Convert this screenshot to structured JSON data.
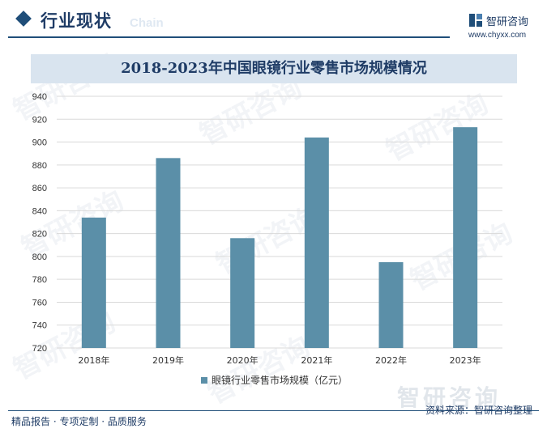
{
  "header": {
    "title": "行业现状",
    "subtitle_en": "Chain"
  },
  "brand": {
    "name": "智研咨询",
    "url": "www.chyxx.com"
  },
  "watermark_text": "智研咨询",
  "chart_data": {
    "type": "bar",
    "title": "2018-2023年中国眼镜行业零售市场规模情况",
    "categories": [
      "2018年",
      "2019年",
      "2020年",
      "2021年",
      "2022年",
      "2023年"
    ],
    "series": [
      {
        "name": "眼镜行业零售市场规模（亿元）",
        "values": [
          834,
          886,
          816,
          904,
          795,
          913
        ]
      }
    ],
    "ylim": [
      720,
      940
    ],
    "yticks": [
      720,
      740,
      760,
      780,
      800,
      820,
      840,
      860,
      880,
      900,
      920,
      940
    ],
    "grid": true,
    "legend": "bottom",
    "bar_color": "#5b8fa8"
  },
  "footer": {
    "left": "精品报告 · 专项定制 · 品质服务",
    "source": "资料来源：智研咨询整理"
  }
}
